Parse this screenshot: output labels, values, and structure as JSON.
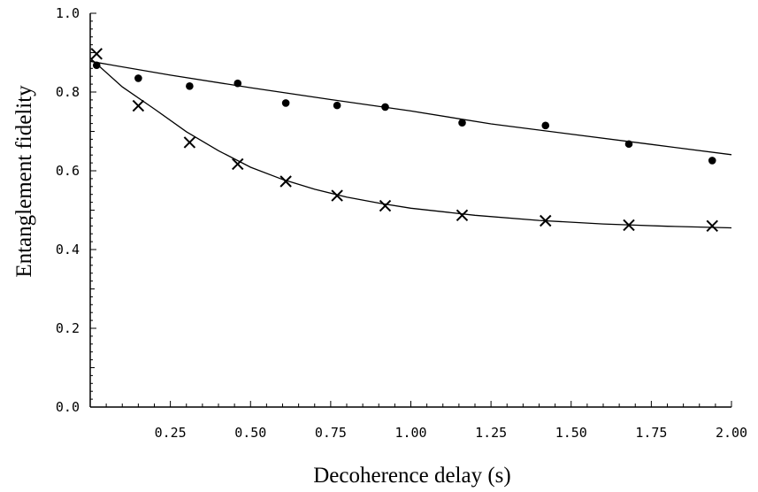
{
  "chart_data": {
    "type": "scatter",
    "xlabel": "Decoherence delay (s)",
    "ylabel": "Entanglement fidelity",
    "xlim": [
      0,
      2.0
    ],
    "ylim": [
      0,
      1.0
    ],
    "x_ticks": [
      0.25,
      0.5,
      0.75,
      1.0,
      1.25,
      1.5,
      1.75,
      2.0
    ],
    "x_tick_labels": [
      "0.25",
      "0.50",
      "0.75",
      "1.00",
      "1.25",
      "1.50",
      "1.75",
      "2.00"
    ],
    "y_ticks": [
      0.0,
      0.2,
      0.4,
      0.6,
      0.8,
      1.0
    ],
    "y_tick_labels": [
      "0.0",
      "0.2",
      "0.4",
      "0.6",
      "0.8",
      "1.0"
    ],
    "grid": false,
    "series": [
      {
        "marker": "dot",
        "x": [
          0.02,
          0.15,
          0.31,
          0.46,
          0.61,
          0.77,
          0.92,
          1.16,
          1.42,
          1.68,
          1.94
        ],
        "y": [
          0.868,
          0.835,
          0.815,
          0.822,
          0.772,
          0.766,
          0.762,
          0.722,
          0.715,
          0.668,
          0.626
        ]
      },
      {
        "marker": "cross",
        "x": [
          0.02,
          0.15,
          0.31,
          0.46,
          0.61,
          0.77,
          0.92,
          1.16,
          1.42,
          1.68,
          1.94
        ],
        "y": [
          0.897,
          0.765,
          0.672,
          0.617,
          0.573,
          0.537,
          0.511,
          0.487,
          0.473,
          0.462,
          0.46
        ]
      }
    ],
    "fits": [
      {
        "x": [
          0.0,
          0.25,
          0.5,
          0.75,
          1.0,
          1.25,
          1.5,
          1.75,
          2.0
        ],
        "y": [
          0.878,
          0.843,
          0.811,
          0.781,
          0.752,
          0.719,
          0.693,
          0.667,
          0.641
        ]
      },
      {
        "x": [
          0.0,
          0.1,
          0.2,
          0.3,
          0.4,
          0.5,
          0.6,
          0.7,
          0.8,
          0.9,
          1.0,
          1.2,
          1.4,
          1.6,
          1.8,
          2.0
        ],
        "y": [
          0.886,
          0.813,
          0.757,
          0.699,
          0.651,
          0.609,
          0.578,
          0.553,
          0.533,
          0.518,
          0.505,
          0.487,
          0.474,
          0.465,
          0.459,
          0.455
        ]
      }
    ]
  }
}
